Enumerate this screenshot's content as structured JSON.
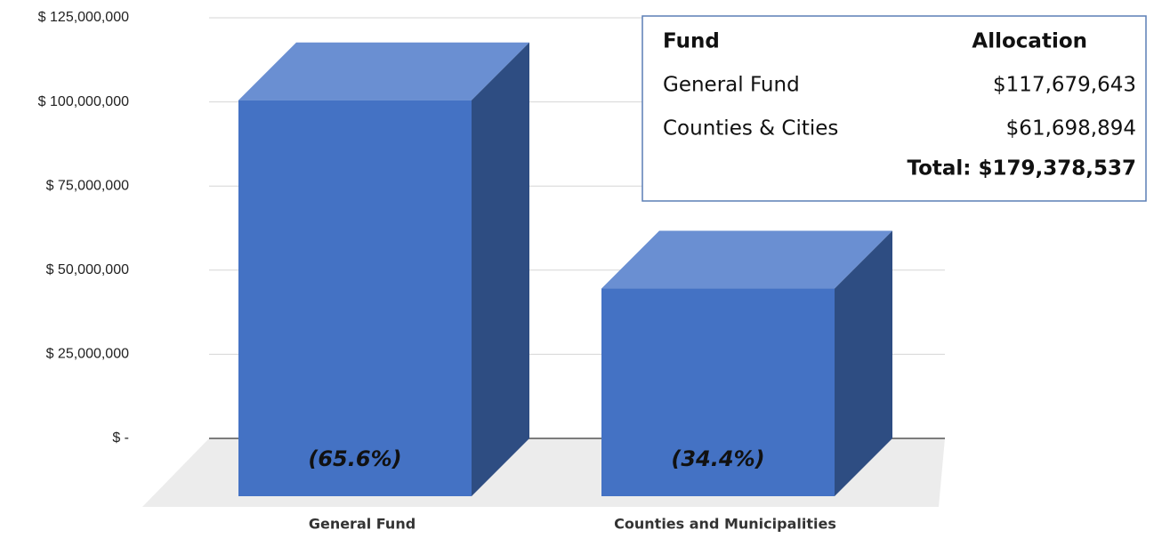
{
  "chart_data": {
    "type": "bar3d",
    "categories": [
      "General Fund",
      "Counties and Municipalities"
    ],
    "values": [
      117679643,
      61698894
    ],
    "percent_labels": [
      "(65.6%)",
      "(34.4%)"
    ],
    "color": "#4472c4",
    "ylim": [
      0,
      125000000
    ],
    "yticks": [
      {
        "value": 0,
        "label": "$ -"
      },
      {
        "value": 25000000,
        "label": "$ 25,000,000"
      },
      {
        "value": 50000000,
        "label": "$ 50,000,000"
      },
      {
        "value": 75000000,
        "label": "$ 75,000,000"
      },
      {
        "value": 100000000,
        "label": "$ 100,000,000"
      },
      {
        "value": 125000000,
        "label": "$ 125,000,000"
      }
    ],
    "grid": true,
    "table": {
      "header": [
        "Fund",
        "Allocation"
      ],
      "rows": [
        [
          "General Fund",
          "$117,679,643"
        ],
        [
          "Counties & Cities",
          "$61,698,894"
        ]
      ],
      "total": "Total: $179,378,537"
    }
  }
}
